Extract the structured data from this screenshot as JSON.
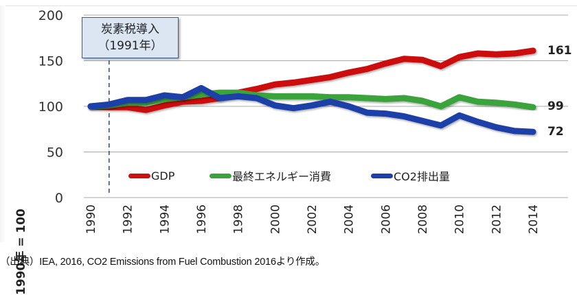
{
  "chart_data": {
    "type": "line",
    "title": "",
    "xlabel": "",
    "ylabel": "1990年 = 100",
    "ylim": [
      0,
      200
    ],
    "yticks": [
      "0",
      "50",
      "100",
      "150",
      "200"
    ],
    "ytick_values": [
      0,
      50,
      100,
      150,
      200
    ],
    "xlim": [
      1990,
      2014
    ],
    "xticks": [
      "1990",
      "1992",
      "1994",
      "1996",
      "1998",
      "2000",
      "2002",
      "2004",
      "2006",
      "2008",
      "2010",
      "2012",
      "2014"
    ],
    "x": [
      1990,
      1991,
      1992,
      1993,
      1994,
      1995,
      1996,
      1997,
      1998,
      1999,
      2000,
      2001,
      2002,
      2003,
      2004,
      2005,
      2006,
      2007,
      2008,
      2009,
      2010,
      2011,
      2012,
      2013,
      2014
    ],
    "grid": true,
    "legend_position": "bottom-inside",
    "series": [
      {
        "name": "GDP",
        "color": "#cc1111",
        "values": [
          100,
          99,
          99,
          96,
          101,
          105,
          106,
          109,
          115,
          119,
          124,
          126,
          129,
          132,
          137,
          141,
          147,
          152,
          151,
          144,
          154,
          158,
          157,
          158,
          161
        ],
        "end_label": "161"
      },
      {
        "name": "最終エネルギー消費",
        "color": "#3aa33a",
        "values": [
          100,
          101,
          104,
          104,
          108,
          110,
          113,
          115,
          115,
          112,
          111,
          111,
          111,
          110,
          110,
          109,
          108,
          109,
          106,
          100,
          110,
          105,
          104,
          102,
          99
        ],
        "end_label": "99"
      },
      {
        "name": "CO2排出量",
        "color": "#1f3fa8",
        "values": [
          100,
          102,
          107,
          107,
          112,
          110,
          120,
          109,
          111,
          109,
          101,
          98,
          101,
          105,
          100,
          93,
          92,
          89,
          84,
          79,
          90,
          83,
          77,
          73,
          72
        ],
        "end_label": "72"
      }
    ],
    "annotations": [
      {
        "type": "vertical-dashed-line",
        "x": 1991,
        "label_line1": "炭素税導入",
        "label_line2": "（1991年）"
      }
    ]
  },
  "source_note": "（出典）IEA, 2016, CO2 Emissions from Fuel Combustion 2016より作成。"
}
